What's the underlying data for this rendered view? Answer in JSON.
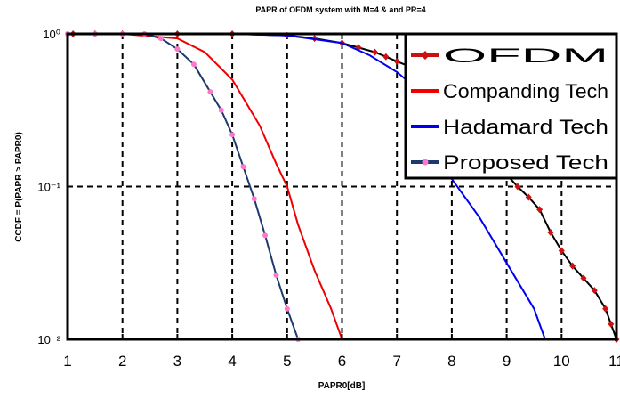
{
  "chart_data": {
    "type": "line",
    "title": "PAPR of OFDM system with M=4 & and PR=4",
    "xlabel": "PAPR0[dB]",
    "ylabel": "CCDF = P(PAPR > PAPR0)",
    "xlim": [
      1,
      11
    ],
    "ylim_log10": [
      -2,
      0
    ],
    "y_scale": "log",
    "grid": true,
    "grid_style": "dashed",
    "legend_position": "top-right",
    "x_ticks": [
      1,
      2,
      3,
      4,
      5,
      6,
      7,
      8,
      9,
      10,
      11
    ],
    "x_tick_labels": [
      "1",
      "2",
      "3",
      "4",
      "5",
      "6",
      "7",
      "8",
      "9",
      "10",
      "11"
    ],
    "y_ticks": [
      -2,
      -1,
      0
    ],
    "y_tick_labels": [
      "10⁻²",
      "10⁻¹",
      "10⁰"
    ],
    "series": [
      {
        "name": "OFDM",
        "color": "#cc1111",
        "line_color": "#000000",
        "marker": "diamond",
        "x": [
          1.1,
          1.5,
          2.0,
          3.0,
          4.0,
          5.0,
          5.5,
          6.0,
          6.3,
          6.6,
          6.8,
          7.0,
          7.2,
          9.2,
          9.4,
          9.6,
          9.8,
          10.0,
          10.2,
          10.4,
          10.6,
          10.8,
          10.9,
          11.0
        ],
        "y_log10": [
          0,
          0,
          0,
          0,
          0,
          -0.01,
          -0.03,
          -0.06,
          -0.09,
          -0.12,
          -0.15,
          -0.18,
          -0.21,
          -1.0,
          -1.07,
          -1.15,
          -1.3,
          -1.42,
          -1.52,
          -1.6,
          -1.68,
          -1.8,
          -1.9,
          -2.0
        ]
      },
      {
        "name": "Companding Tech",
        "color": "#ee0000",
        "x": [
          1.0,
          2.0,
          3.0,
          3.5,
          4.0,
          4.5,
          4.8,
          5.0,
          5.2,
          5.5,
          5.8,
          6.0
        ],
        "y_log10": [
          0,
          0,
          -0.03,
          -0.12,
          -0.3,
          -0.6,
          -0.85,
          -1.0,
          -1.25,
          -1.55,
          -1.8,
          -2.0
        ]
      },
      {
        "name": "Hadamard Tech",
        "color": "#0000ee",
        "x": [
          1.0,
          2.0,
          4.0,
          5.0,
          6.0,
          6.5,
          7.0,
          7.5,
          8.0,
          8.5,
          9.0,
          9.5,
          9.7
        ],
        "y_log10": [
          0,
          0,
          0,
          -0.01,
          -0.06,
          -0.14,
          -0.25,
          -0.4,
          -0.95,
          -1.2,
          -1.5,
          -1.8,
          -2.0
        ]
      },
      {
        "name": "Proposed Tech",
        "color": "#1c3a6e",
        "marker_color": "#ff77cc",
        "marker": "circle",
        "x": [
          1.0,
          1.5,
          2.0,
          2.4,
          2.7,
          3.0,
          3.3,
          3.6,
          3.8,
          4.0,
          4.2,
          4.4,
          4.6,
          4.8,
          5.0,
          5.2
        ],
        "y_log10": [
          0,
          0,
          0,
          0,
          -0.03,
          -0.1,
          -0.2,
          -0.38,
          -0.5,
          -0.66,
          -0.87,
          -1.08,
          -1.32,
          -1.58,
          -1.8,
          -2.0
        ]
      }
    ]
  }
}
